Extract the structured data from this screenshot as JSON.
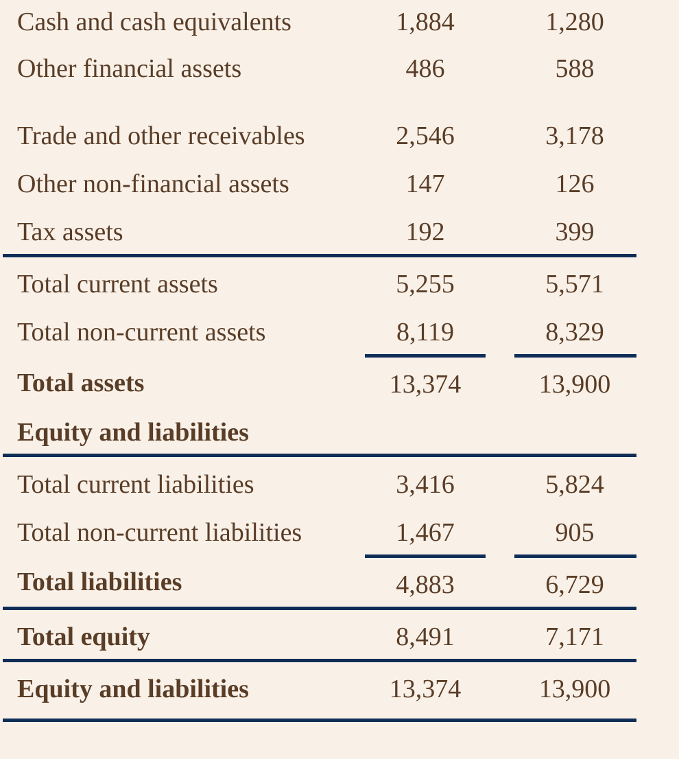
{
  "rows": [
    {
      "label": "Cash and cash equivalents",
      "v1": "1,884",
      "v2": "1,280"
    },
    {
      "label": "Other financial assets",
      "v1": "486",
      "v2": "588"
    },
    {
      "label": "Trade and other receivables",
      "v1": "2,546",
      "v2": "3,178"
    },
    {
      "label": "Other non-financial assets",
      "v1": "147",
      "v2": "126"
    },
    {
      "label": "Tax assets",
      "v1": "192",
      "v2": "399"
    },
    {
      "label": "Total current assets",
      "v1": "5,255",
      "v2": "5,571"
    },
    {
      "label": "Total non-current assets",
      "v1": "8,119",
      "v2": "8,329"
    },
    {
      "label": "Total assets",
      "v1": "13,374",
      "v2": "13,900"
    },
    {
      "label": "Equity and liabilities",
      "v1": "",
      "v2": ""
    },
    {
      "label": "Total current liabilities",
      "v1": "3,416",
      "v2": "5,824"
    },
    {
      "label": "Total non-current liabilities",
      "v1": "1,467",
      "v2": "905"
    },
    {
      "label": "Total liabilities",
      "v1": "4,883",
      "v2": "6,729"
    },
    {
      "label": "Total equity",
      "v1": "8,491",
      "v2": "7,171"
    },
    {
      "label": "Equity and liabilities",
      "v1": "13,374",
      "v2": "13,900"
    }
  ],
  "colors": {
    "text": "#5a3d27",
    "rule": "#0f2d57",
    "background": "#f9f1e8"
  }
}
